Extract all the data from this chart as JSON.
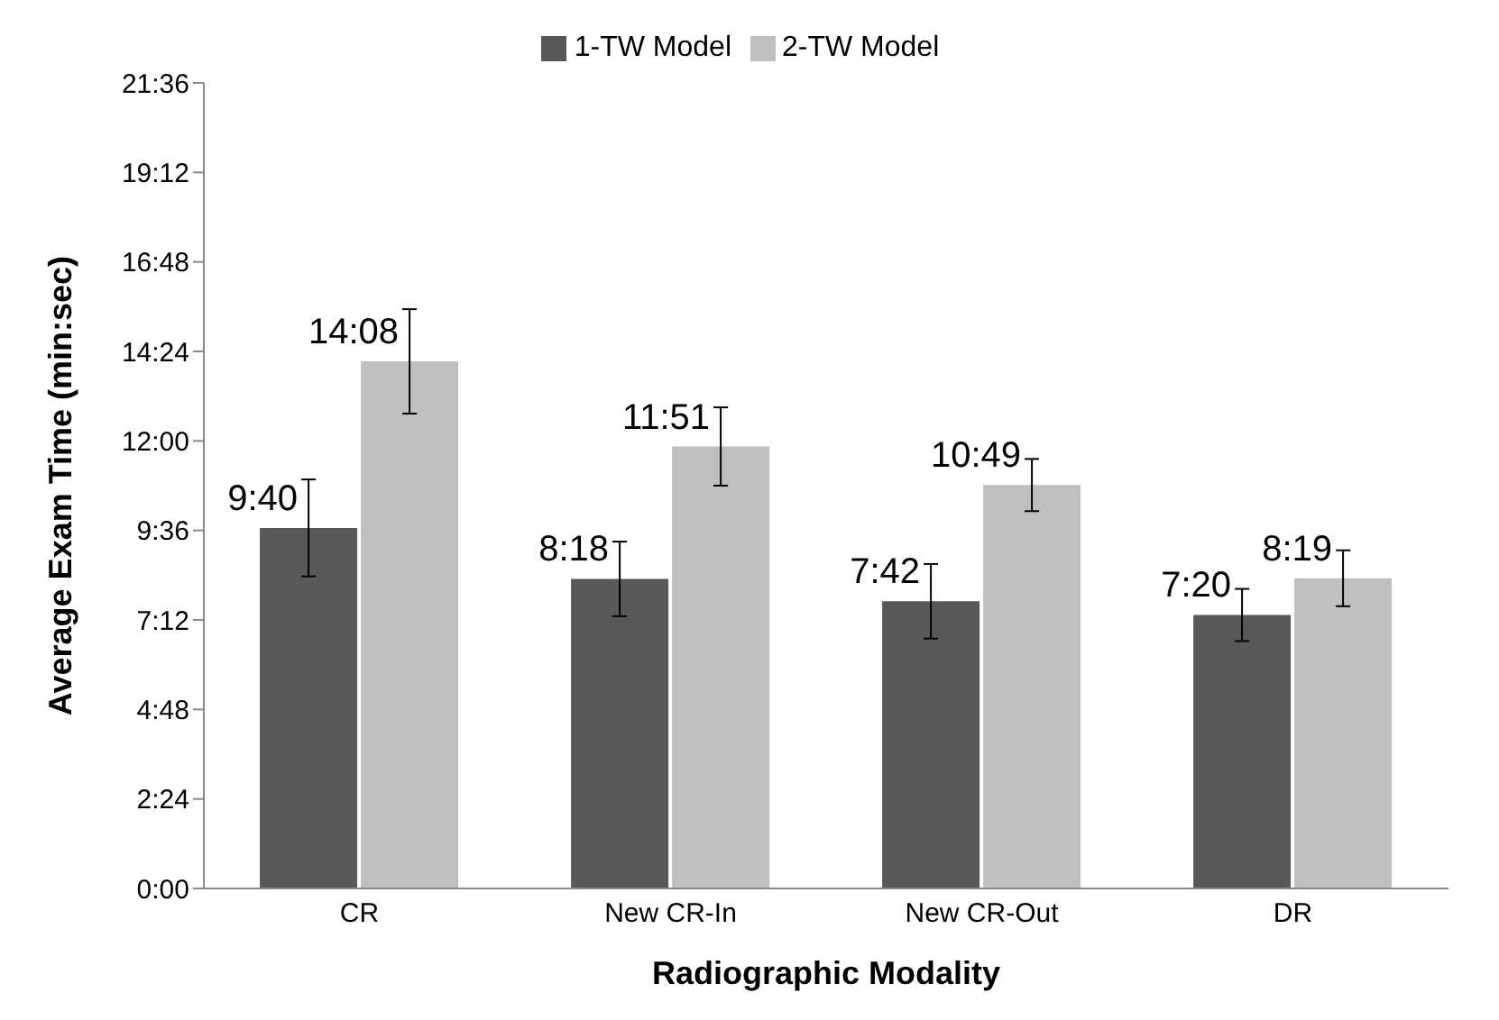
{
  "chart_data": {
    "type": "bar",
    "xlabel": "Radiographic Modality",
    "ylabel": "Average Exam Time (min:sec)",
    "categories": [
      "CR",
      "New CR-In",
      "New CR-Out",
      "DR"
    ],
    "series": [
      {
        "name": "1-TW Model",
        "color": "#595959",
        "values": [
          9.667,
          8.3,
          7.7,
          7.333
        ],
        "errors": [
          1.3,
          1.0,
          1.0,
          0.7
        ],
        "value_labels": [
          "9:40",
          "8:18",
          "7:42",
          "7:20"
        ]
      },
      {
        "name": "2-TW Model",
        "color": "#bfbfbf",
        "values": [
          14.133,
          11.85,
          10.817,
          8.317
        ],
        "errors": [
          1.4,
          1.05,
          0.7,
          0.75
        ],
        "value_labels": [
          "14:08",
          "11:51",
          "10:49",
          "8:19"
        ]
      }
    ],
    "ylim": [
      0,
      21.6
    ],
    "yticks": [
      {
        "value": 0,
        "label": "0:00"
      },
      {
        "value": 2.4,
        "label": "2:24"
      },
      {
        "value": 4.8,
        "label": "4:48"
      },
      {
        "value": 7.2,
        "label": "7:12"
      },
      {
        "value": 9.6,
        "label": "9:36"
      },
      {
        "value": 12,
        "label": "12:00"
      },
      {
        "value": 14.4,
        "label": "14:24"
      },
      {
        "value": 16.8,
        "label": "16:48"
      },
      {
        "value": 19.2,
        "label": "19:12"
      },
      {
        "value": 21.6,
        "label": "21:36"
      }
    ],
    "grid": false,
    "legend": "top"
  }
}
